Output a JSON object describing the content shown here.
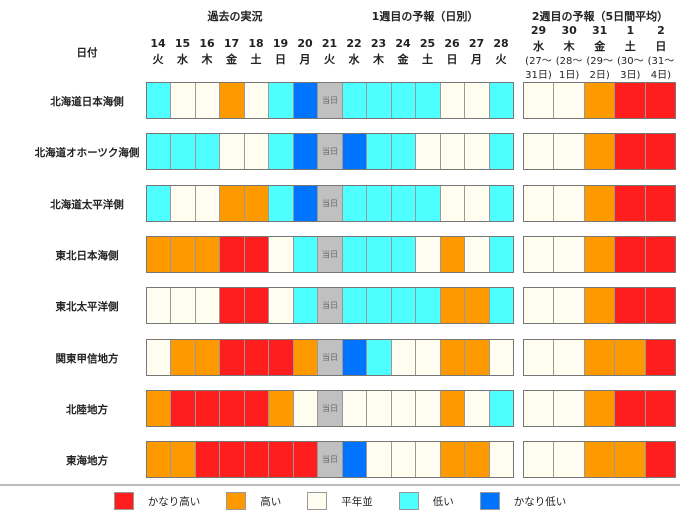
{
  "header": {
    "date_label": "日付",
    "past": "過去の実況",
    "week1": "1週目の予報（日別）",
    "week2": "2週目の予報（5日間平均）",
    "today": "当日"
  },
  "days": [
    {
      "d": "14",
      "w": "火"
    },
    {
      "d": "15",
      "w": "水"
    },
    {
      "d": "16",
      "w": "木"
    },
    {
      "d": "17",
      "w": "金"
    },
    {
      "d": "18",
      "w": "土"
    },
    {
      "d": "19",
      "w": "日"
    },
    {
      "d": "20",
      "w": "月"
    },
    {
      "d": "21",
      "w": "火"
    },
    {
      "d": "22",
      "w": "水"
    },
    {
      "d": "23",
      "w": "木"
    },
    {
      "d": "24",
      "w": "金"
    },
    {
      "d": "25",
      "w": "土"
    },
    {
      "d": "26",
      "w": "日"
    },
    {
      "d": "27",
      "w": "月"
    },
    {
      "d": "28",
      "w": "火"
    }
  ],
  "periods": [
    {
      "d": "29",
      "w": "水",
      "r1": "(27～",
      "r2": "31日)"
    },
    {
      "d": "30",
      "w": "木",
      "r1": "(28～",
      "r2": "1日)"
    },
    {
      "d": "31",
      "w": "金",
      "r1": "(29～",
      "r2": "2日)"
    },
    {
      "d": "1",
      "w": "土",
      "r1": "(30～",
      "r2": "3日)"
    },
    {
      "d": "2",
      "w": "日",
      "r1": "(31～",
      "r2": "4日)"
    }
  ],
  "colors": {
    "R": "#ff1e1e",
    "O": "#ff9900",
    "N": "#fffdf0",
    "C": "#4dffff",
    "B": "#0074ff",
    "T": "#c0c0c0"
  },
  "regions": [
    {
      "name": "北海道日本海側",
      "daily": "CNNONCBTCCCCNNC",
      "weekly": "NNORR"
    },
    {
      "name": "北海道オホーツク海側",
      "daily": "CCCNNCBTBCCNNNC",
      "weekly": "NNORR"
    },
    {
      "name": "北海道太平洋側",
      "daily": "CNNOOCBTCCCCNNC",
      "weekly": "NNORR"
    },
    {
      "name": "東北日本海側",
      "daily": "OOORRNCTCCCNONC",
      "weekly": "NNORR"
    },
    {
      "name": "東北太平洋側",
      "daily": "NNNRRNCTCCCCOOC",
      "weekly": "NNORR"
    },
    {
      "name": "関東甲信地方",
      "daily": "NOORRROTBCNNOON",
      "weekly": "NNOOR"
    },
    {
      "name": "北陸地方",
      "daily": "ORRRRONTNNNNONC",
      "weekly": "NNORR"
    },
    {
      "name": "東海地方",
      "daily": "OORRRRRTBNNNOON",
      "weekly": "NNOOR"
    }
  ],
  "legend": [
    {
      "key": "R",
      "label": "かなり高い"
    },
    {
      "key": "O",
      "label": "高い"
    },
    {
      "key": "N",
      "label": "平年並"
    },
    {
      "key": "C",
      "label": "低い"
    },
    {
      "key": "B",
      "label": "かなり低い"
    }
  ]
}
